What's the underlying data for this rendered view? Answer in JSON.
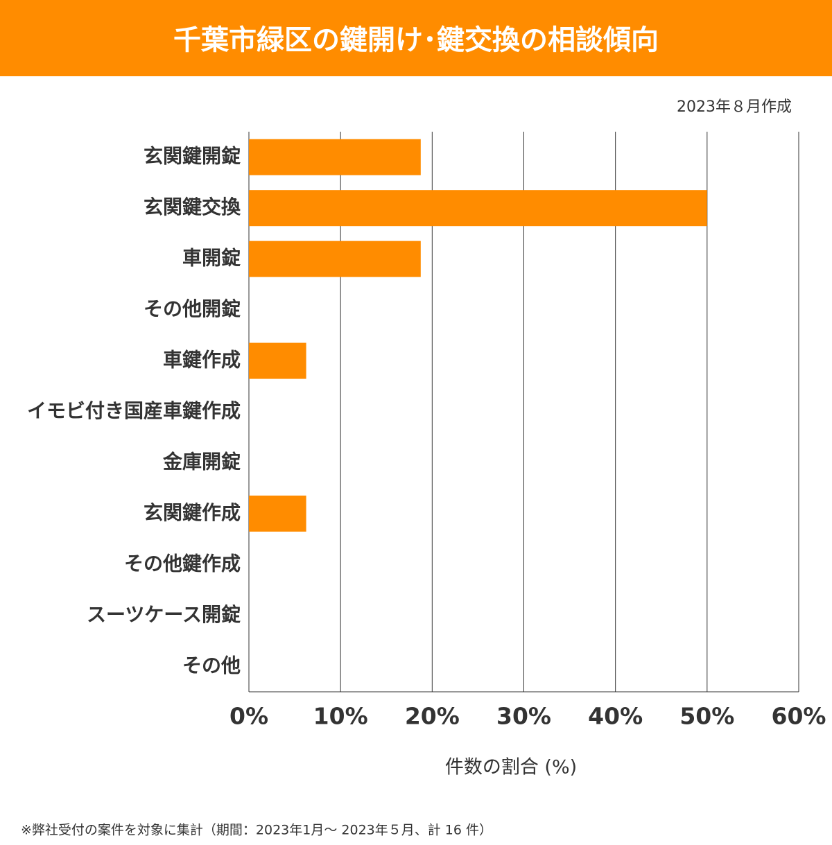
{
  "chart_data": {
    "type": "bar",
    "orientation": "horizontal",
    "title": "千葉市緑区の鍵開け･鍵交換の相談傾向",
    "subtitle": "2023年８月作成",
    "x_label": "件数の割合 (%)",
    "note": "※弊社受付の案件を対象に集計（期間：2023年1月～ 2023年５月、計 16 件）",
    "categories": [
      "玄関鍵開錠",
      "玄関鍵交換",
      "車開錠",
      "その他開錠",
      "車鍵作成",
      "イモビ付き国産車鍵作成",
      "金庫開錠",
      "玄関鍵作成",
      "その他鍵作成",
      "スーツケース開錠",
      "その他"
    ],
    "values": [
      18.75,
      50,
      18.75,
      0,
      6.25,
      0,
      0,
      6.25,
      0,
      0,
      0
    ],
    "color": "#ff8c00",
    "xlim": [
      0,
      60
    ],
    "xticks": [
      {
        "value": 0,
        "label": "0%"
      },
      {
        "value": 10,
        "label": "10%"
      },
      {
        "value": 20,
        "label": "20%"
      },
      {
        "value": 30,
        "label": "30%"
      },
      {
        "value": 40,
        "label": "40%"
      },
      {
        "value": 50,
        "label": "50%"
      },
      {
        "value": 60,
        "label": "60%"
      }
    ],
    "grid": true
  }
}
